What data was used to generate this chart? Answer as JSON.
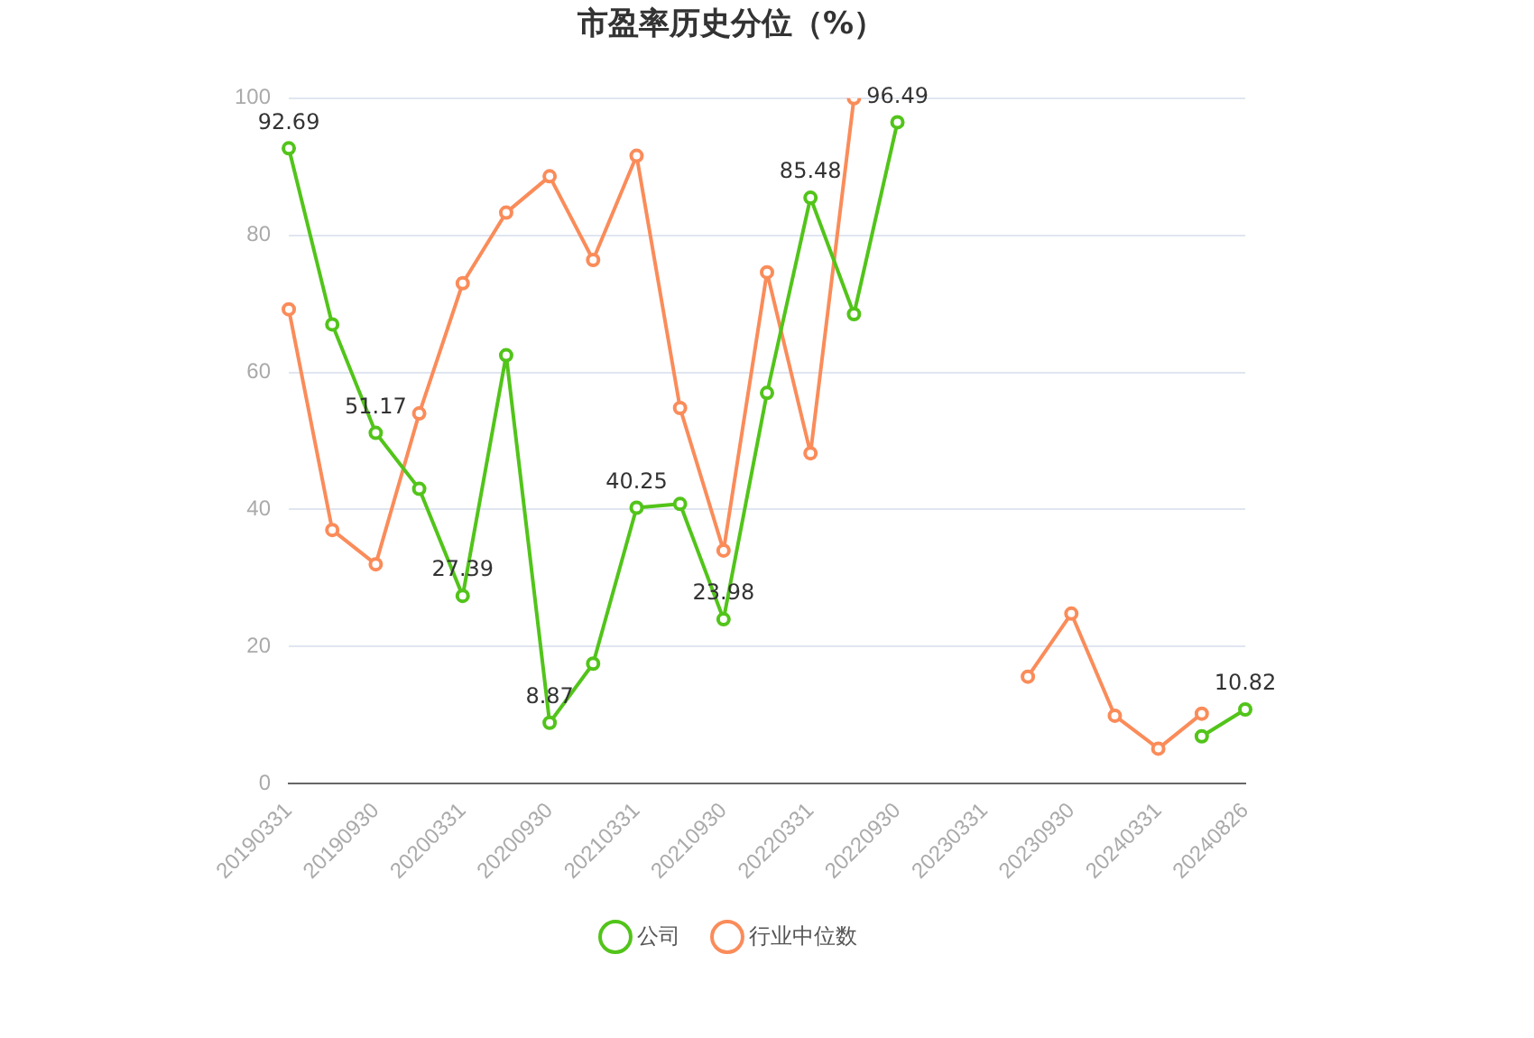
{
  "chart_data": {
    "type": "line",
    "title": "市盈率历史分位（%）",
    "categories": [
      "20190331",
      null,
      "20190930",
      null,
      "20200331",
      null,
      "20200930",
      null,
      "20210331",
      null,
      "20210930",
      null,
      "20220331",
      null,
      "20220930",
      null,
      "20230331",
      null,
      "20230930",
      null,
      "20240331",
      null,
      "20240826"
    ],
    "series": [
      {
        "name": "公司",
        "color": "#52c41a",
        "values": [
          92.69,
          67,
          51.17,
          43,
          27.39,
          62.5,
          8.87,
          17.5,
          40.25,
          40.8,
          23.98,
          57,
          85.48,
          68.5,
          96.49,
          null,
          null,
          null,
          null,
          null,
          null,
          6.9,
          10.82
        ],
        "value_labels": [
          "92.69",
          null,
          "51.17",
          null,
          "27.39",
          null,
          "8.87",
          null,
          "40.25",
          null,
          "23.98",
          null,
          "85.48",
          null,
          "96.49",
          null,
          null,
          null,
          null,
          null,
          null,
          null,
          "10.82"
        ]
      },
      {
        "name": "行业中位数",
        "color": "#fa8c5a",
        "values": [
          69.2,
          37,
          32,
          54,
          73,
          83.3,
          88.6,
          76.4,
          91.6,
          54.8,
          34,
          74.6,
          48.2,
          100,
          null,
          null,
          null,
          15.6,
          24.8,
          9.9,
          5.1,
          10.2,
          null
        ]
      }
    ],
    "ylim": [
      0,
      100
    ],
    "yticks": [
      0,
      20,
      40,
      60,
      80,
      100
    ],
    "grid": "y",
    "legend": "bottom",
    "marker": "circle",
    "line_style": "solid"
  }
}
